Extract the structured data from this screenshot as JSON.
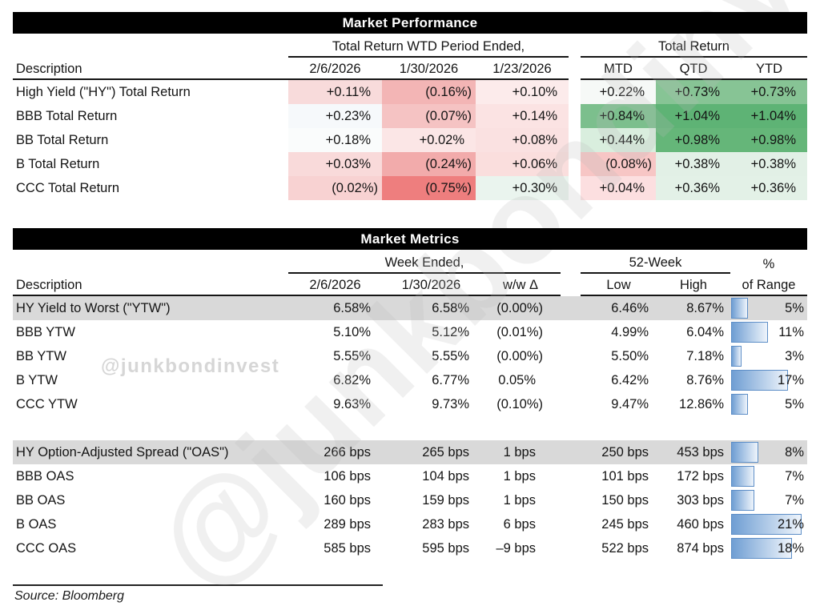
{
  "performance": {
    "title": "Market Performance",
    "desc_header": "Description",
    "wtd_group_label": "Total Return WTD Period Ended,",
    "tr_group_label": "Total Return",
    "wtd_cols": [
      "2/6/2026",
      "1/30/2026",
      "1/23/2026"
    ],
    "tr_cols": [
      "MTD",
      "QTD",
      "YTD"
    ],
    "rows": [
      {
        "label": "High Yield (\"HY\") Total Return",
        "wtd": [
          {
            "v": "+0.11%",
            "bg": "#f8dbdb"
          },
          {
            "v": "(0.16%)",
            "bg": "#f3b5b5"
          },
          {
            "v": "+0.10%",
            "bg": "#fcebeb"
          }
        ],
        "tr": [
          {
            "v": "+0.22%",
            "bg": "#f6f9f7"
          },
          {
            "v": "+0.73%",
            "bg": "#87c495"
          },
          {
            "v": "+0.73%",
            "bg": "#87c495"
          }
        ]
      },
      {
        "label": "BBB Total Return",
        "wtd": [
          {
            "v": "+0.23%",
            "bg": "#f6f9fb"
          },
          {
            "v": "(0.07%)",
            "bg": "#f5c3c3"
          },
          {
            "v": "+0.14%",
            "bg": "#fbe3e3"
          }
        ],
        "tr": [
          {
            "v": "+0.84%",
            "bg": "#7cbf8d"
          },
          {
            "v": "+1.04%",
            "bg": "#5eb375"
          },
          {
            "v": "+1.04%",
            "bg": "#5eb375"
          }
        ]
      },
      {
        "label": "BB Total Return",
        "wtd": [
          {
            "v": "+0.18%",
            "bg": "#fafcfc"
          },
          {
            "v": "+0.02%",
            "bg": "#fbe6e6"
          },
          {
            "v": "+0.08%",
            "bg": "#fae1e1"
          }
        ],
        "tr": [
          {
            "v": "+0.44%",
            "bg": "#d9eede"
          },
          {
            "v": "+0.98%",
            "bg": "#65b679"
          },
          {
            "v": "+0.98%",
            "bg": "#65b679"
          }
        ]
      },
      {
        "label": "B Total Return",
        "wtd": [
          {
            "v": "+0.03%",
            "bg": "#f9dada"
          },
          {
            "v": "(0.24%)",
            "bg": "#f2abab"
          },
          {
            "v": "+0.06%",
            "bg": "#fadedd"
          }
        ],
        "tr": [
          {
            "v": "(0.08%)",
            "bg": "#f7c6c5"
          },
          {
            "v": "+0.38%",
            "bg": "#e2f0e6"
          },
          {
            "v": "+0.38%",
            "bg": "#e2f0e6"
          }
        ]
      },
      {
        "label": "CCC Total Return",
        "wtd": [
          {
            "v": "(0.02%)",
            "bg": "#f8d2d2"
          },
          {
            "v": "(0.75%)",
            "bg": "#ee7e7e"
          },
          {
            "v": "+0.30%",
            "bg": "#eaf4ee"
          }
        ],
        "tr": [
          {
            "v": "+0.04%",
            "bg": "#fcdfe0"
          },
          {
            "v": "+0.36%",
            "bg": "#e3f1e7"
          },
          {
            "v": "+0.36%",
            "bg": "#e3f1e7"
          }
        ]
      }
    ]
  },
  "metrics": {
    "title": "Market Metrics",
    "desc_header": "Description",
    "week_group_label": "Week Ended,",
    "week_cols": [
      "2/6/2026",
      "1/30/2026",
      "w/w Δ"
    ],
    "fiftytwo_group_label": "52-Week",
    "low_label": "Low",
    "high_label": "High",
    "pct_label": "%",
    "range_label": "of Range",
    "groups": [
      {
        "rows": [
          {
            "label": "HY Yield to Worst (\"YTW\")",
            "highlight": true,
            "cur": "6.58%",
            "prev": "6.58%",
            "wow": "(0.00%)",
            "low": "6.46%",
            "high": "8.67%",
            "range": "5%",
            "range_pct": 5
          },
          {
            "label": "BBB YTW",
            "highlight": false,
            "cur": "5.10%",
            "prev": "5.12%",
            "wow": "(0.01%)",
            "low": "4.99%",
            "high": "6.04%",
            "range": "11%",
            "range_pct": 11
          },
          {
            "label": "BB YTW",
            "highlight": false,
            "cur": "5.55%",
            "prev": "5.55%",
            "wow": "(0.00%)",
            "low": "5.50%",
            "high": "7.18%",
            "range": "3%",
            "range_pct": 3
          },
          {
            "label": "B YTW",
            "highlight": false,
            "cur": "6.82%",
            "prev": "6.77%",
            "wow": "0.05%",
            "low": "6.42%",
            "high": "8.76%",
            "range": "17%",
            "range_pct": 17
          },
          {
            "label": "CCC YTW",
            "highlight": false,
            "cur": "9.63%",
            "prev": "9.73%",
            "wow": "(0.10%)",
            "low": "9.47%",
            "high": "12.86%",
            "range": "5%",
            "range_pct": 5
          }
        ]
      },
      {
        "rows": [
          {
            "label": "HY Option-Adjusted Spread (\"OAS\")",
            "highlight": true,
            "cur": "266 bps",
            "prev": "265 bps",
            "wow": "1 bps",
            "low": "250 bps",
            "high": "453 bps",
            "range": "8%",
            "range_pct": 8
          },
          {
            "label": "BBB OAS",
            "highlight": false,
            "cur": "106 bps",
            "prev": "104 bps",
            "wow": "1 bps",
            "low": "101 bps",
            "high": "172 bps",
            "range": "7%",
            "range_pct": 7
          },
          {
            "label": "BB OAS",
            "highlight": false,
            "cur": "160 bps",
            "prev": "159 bps",
            "wow": "1 bps",
            "low": "150 bps",
            "high": "303 bps",
            "range": "7%",
            "range_pct": 7
          },
          {
            "label": "B OAS",
            "highlight": false,
            "cur": "289 bps",
            "prev": "283 bps",
            "wow": "6 bps",
            "low": "245 bps",
            "high": "460 bps",
            "range": "21%",
            "range_pct": 21
          },
          {
            "label": "CCC OAS",
            "highlight": false,
            "cur": "585 bps",
            "prev": "595 bps",
            "wow": "–9 bps",
            "low": "522 bps",
            "high": "874 bps",
            "range": "18%",
            "range_pct": 18
          }
        ]
      }
    ]
  },
  "source": "Source: Bloomberg",
  "watermark": {
    "small": "@junkbondinvest",
    "large": "@junkbondinvest"
  },
  "colors": {
    "highlight_row": "#d9d9d9",
    "header_bar": "#000000",
    "databar_fill_start": "#6f9ed3",
    "databar_fill_end": "#eef4fb",
    "databar_border": "#5d8ec7",
    "negative_strong": "#ee7e7e",
    "positive_strong": "#5eb375"
  }
}
